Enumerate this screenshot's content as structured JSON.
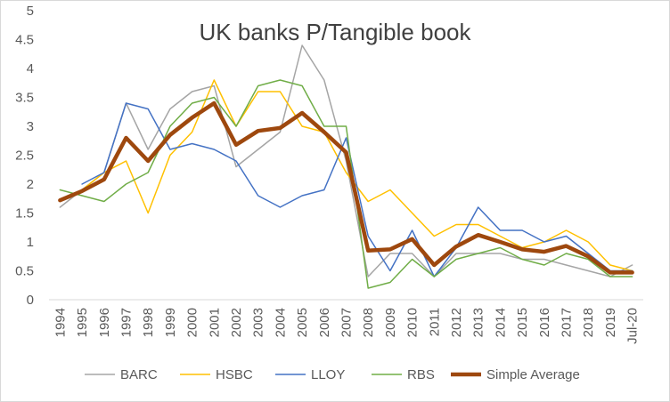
{
  "chart_data": {
    "type": "line",
    "title": "UK banks P/Tangible book",
    "xlabel": "",
    "ylabel": "",
    "ylim": [
      0,
      5
    ],
    "yticks": [
      "0",
      "0.5",
      "1",
      "1.5",
      "2",
      "2.5",
      "3",
      "3.5",
      "4",
      "4.5",
      "5"
    ],
    "grid": false,
    "legend_position": "bottom",
    "categories": [
      "1994",
      "1995",
      "1996",
      "1997",
      "1998",
      "1999",
      "2000",
      "2001",
      "2002",
      "2003",
      "2004",
      "2005",
      "2006",
      "2007",
      "2008",
      "2009",
      "2010",
      "2011",
      "2012",
      "2013",
      "2014",
      "2015",
      "2016",
      "2017",
      "2018",
      "2019",
      "Jul-20"
    ],
    "series": [
      {
        "name": "BARC",
        "color": "#a5a5a5",
        "width": 1.5,
        "values": [
          1.6,
          1.9,
          2.2,
          3.4,
          2.6,
          3.3,
          3.6,
          3.7,
          2.3,
          2.6,
          2.9,
          4.4,
          3.8,
          2.4,
          0.4,
          0.8,
          0.8,
          0.4,
          0.8,
          0.8,
          0.8,
          0.7,
          0.7,
          0.6,
          0.5,
          0.4,
          0.6
        ]
      },
      {
        "name": "HSBC",
        "color": "#ffc000",
        "width": 1.5,
        "values": [
          1.7,
          1.9,
          2.2,
          2.4,
          1.5,
          2.5,
          2.9,
          3.8,
          3.0,
          3.6,
          3.6,
          3.0,
          2.9,
          2.2,
          1.7,
          1.9,
          1.5,
          1.1,
          1.3,
          1.3,
          1.1,
          0.9,
          1.0,
          1.2,
          1.0,
          0.6,
          0.5
        ]
      },
      {
        "name": "LLOY",
        "color": "#4472c4",
        "width": 1.5,
        "values": [
          null,
          2.0,
          2.2,
          3.4,
          3.3,
          2.6,
          2.7,
          2.6,
          2.4,
          1.8,
          1.6,
          1.8,
          1.9,
          2.8,
          1.1,
          0.5,
          1.2,
          0.4,
          0.9,
          1.6,
          1.2,
          1.2,
          1.0,
          1.1,
          0.8,
          0.5,
          0.5
        ]
      },
      {
        "name": "RBS",
        "color": "#70ad47",
        "width": 1.5,
        "values": [
          1.9,
          1.8,
          1.7,
          2.0,
          2.2,
          3.0,
          3.4,
          3.5,
          3.0,
          3.7,
          3.8,
          3.7,
          3.0,
          3.0,
          0.2,
          0.3,
          0.7,
          0.4,
          0.7,
          0.8,
          0.9,
          0.7,
          0.6,
          0.8,
          0.7,
          0.4,
          0.4
        ]
      },
      {
        "name": "Simple Average",
        "color": "#9e480e",
        "width": 4.5,
        "values": [
          1.72,
          1.88,
          2.08,
          2.8,
          2.4,
          2.85,
          3.15,
          3.4,
          2.68,
          2.92,
          2.97,
          3.23,
          2.9,
          2.55,
          0.85,
          0.87,
          1.05,
          0.6,
          0.92,
          1.12,
          1.0,
          0.87,
          0.83,
          0.93,
          0.75,
          0.47,
          0.47
        ]
      }
    ]
  }
}
